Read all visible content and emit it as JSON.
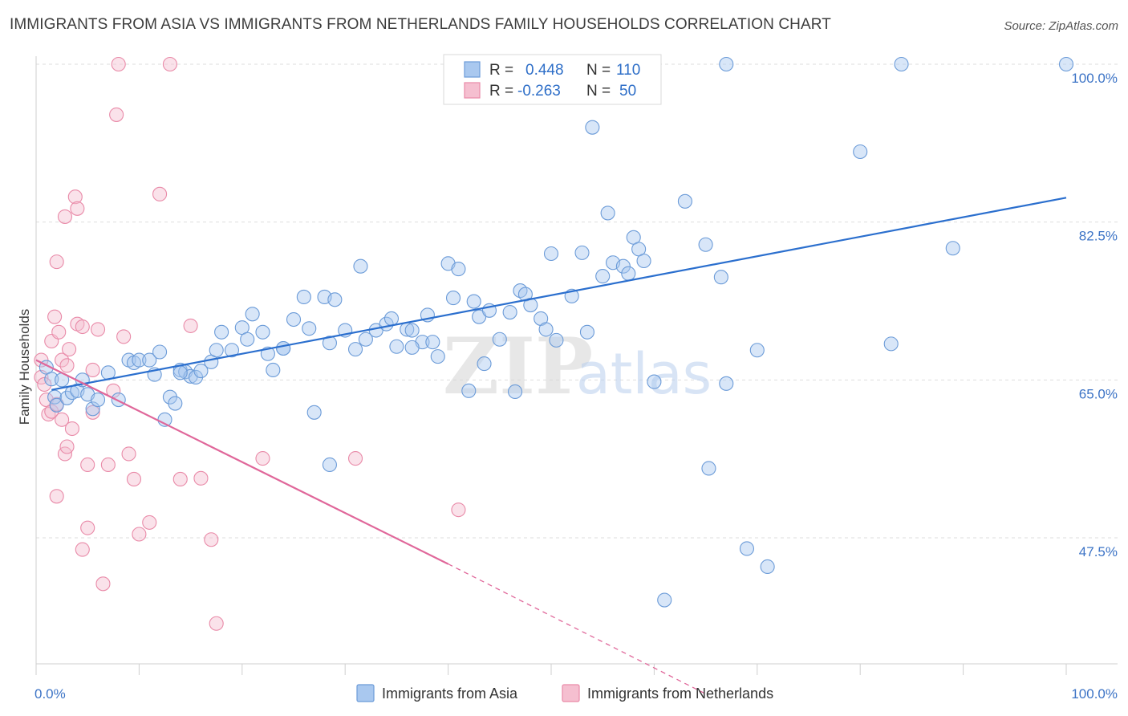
{
  "title": "IMMIGRANTS FROM ASIA VS IMMIGRANTS FROM NETHERLANDS FAMILY HOUSEHOLDS CORRELATION CHART",
  "source": "Source: ZipAtlas.com",
  "colors": {
    "asia_fill": "#a9c8ef",
    "asia_stroke": "#6b9bd8",
    "asia_line": "#2b6fce",
    "neth_fill": "#f5bfd0",
    "neth_stroke": "#e98aa8",
    "neth_line": "#e0679a",
    "axis_text": "#3d74c6",
    "grid": "#dedede"
  },
  "legend": {
    "asia": {
      "r_label": "R = ",
      "r_value": "0.448",
      "n_label": "N = ",
      "n_value": "110"
    },
    "neth": {
      "r_label": "R = ",
      "r_value": "-0.263",
      "n_label": "N = ",
      "n_value": "50"
    }
  },
  "watermark": {
    "zip": "ZIP",
    "atlas": "atlas"
  },
  "chart_data": {
    "type": "scatter",
    "xlabel": "",
    "ylabel": "Family Households",
    "xlim": [
      0,
      100
    ],
    "ylim": [
      30.2,
      101.5
    ],
    "x_tick_labels": [
      {
        "value": 0,
        "label": "0.0%"
      },
      {
        "value": 100,
        "label": "100.0%"
      }
    ],
    "y_tick_labels": [
      {
        "value": 100.0,
        "label": "100.0%"
      },
      {
        "value": 82.5,
        "label": "82.5%"
      },
      {
        "value": 65.0,
        "label": "65.0%"
      },
      {
        "value": 47.5,
        "label": "47.5%"
      }
    ],
    "grid": true,
    "legend_position": "top-center",
    "series": [
      {
        "name": "Immigrants from Asia",
        "trend": {
          "x": [
            1.5,
            100
          ],
          "y": [
            63.9,
            85.2
          ]
        },
        "points": [
          [
            1.0,
            66.4
          ],
          [
            1.5,
            65.1
          ],
          [
            1.8,
            63.1
          ],
          [
            2.0,
            62.2
          ],
          [
            2.5,
            65.0
          ],
          [
            3.0,
            63.0
          ],
          [
            3.5,
            63.6
          ],
          [
            4.0,
            63.8
          ],
          [
            4.5,
            65.0
          ],
          [
            5.0,
            63.4
          ],
          [
            5.5,
            61.8
          ],
          [
            6.0,
            62.8
          ],
          [
            7.0,
            65.8
          ],
          [
            8.0,
            62.8
          ],
          [
            9.0,
            67.2
          ],
          [
            9.5,
            66.9
          ],
          [
            10.0,
            67.2
          ],
          [
            11.0,
            67.2
          ],
          [
            11.5,
            65.6
          ],
          [
            12.0,
            68.1
          ],
          [
            12.5,
            60.6
          ],
          [
            13.0,
            63.1
          ],
          [
            13.5,
            62.4
          ],
          [
            14.0,
            66.1
          ],
          [
            14.5,
            65.9
          ],
          [
            15.0,
            65.4
          ],
          [
            15.5,
            65.3
          ],
          [
            16.0,
            66.0
          ],
          [
            17.0,
            67.0
          ],
          [
            17.5,
            68.3
          ],
          [
            18.0,
            70.3
          ],
          [
            19.0,
            68.3
          ],
          [
            20.0,
            70.8
          ],
          [
            20.5,
            69.5
          ],
          [
            21.0,
            72.3
          ],
          [
            22.0,
            70.3
          ],
          [
            22.5,
            67.9
          ],
          [
            23.0,
            66.1
          ],
          [
            24.0,
            68.5
          ],
          [
            25.0,
            71.7
          ],
          [
            26.0,
            74.2
          ],
          [
            26.5,
            70.7
          ],
          [
            27.0,
            61.4
          ],
          [
            28.0,
            74.2
          ],
          [
            28.5,
            69.1
          ],
          [
            29.0,
            73.9
          ],
          [
            30.0,
            70.5
          ],
          [
            31.0,
            68.4
          ],
          [
            31.5,
            77.6
          ],
          [
            32.0,
            69.5
          ],
          [
            33.0,
            70.5
          ],
          [
            34.0,
            71.2
          ],
          [
            34.5,
            71.8
          ],
          [
            35.0,
            68.7
          ],
          [
            36.0,
            70.6
          ],
          [
            36.5,
            70.5
          ],
          [
            37.5,
            69.2
          ],
          [
            38.0,
            72.2
          ],
          [
            38.5,
            69.2
          ],
          [
            39.0,
            67.6
          ],
          [
            40.0,
            77.9
          ],
          [
            40.5,
            74.1
          ],
          [
            41.0,
            77.3
          ],
          [
            42.0,
            63.8
          ],
          [
            42.5,
            73.7
          ],
          [
            43.0,
            72.0
          ],
          [
            43.5,
            66.8
          ],
          [
            44.0,
            72.7
          ],
          [
            45.0,
            69.5
          ],
          [
            46.0,
            72.5
          ],
          [
            46.5,
            63.7
          ],
          [
            47.0,
            74.9
          ],
          [
            47.5,
            74.5
          ],
          [
            48.0,
            73.3
          ],
          [
            49.0,
            71.8
          ],
          [
            49.5,
            70.6
          ],
          [
            50.0,
            79.0
          ],
          [
            50.5,
            69.4
          ],
          [
            52.0,
            74.3
          ],
          [
            53.0,
            79.1
          ],
          [
            53.5,
            70.3
          ],
          [
            54.0,
            93.0
          ],
          [
            55.0,
            76.5
          ],
          [
            55.5,
            83.5
          ],
          [
            56.0,
            78.0
          ],
          [
            57.0,
            77.6
          ],
          [
            57.5,
            76.8
          ],
          [
            58.0,
            80.8
          ],
          [
            58.5,
            79.5
          ],
          [
            59.0,
            78.2
          ],
          [
            60.0,
            64.8
          ],
          [
            61.0,
            40.6
          ],
          [
            63.0,
            84.8
          ],
          [
            65.0,
            80.0
          ],
          [
            65.3,
            55.2
          ],
          [
            66.5,
            76.4
          ],
          [
            67.0,
            64.6
          ],
          [
            69.0,
            46.3
          ],
          [
            70.0,
            68.3
          ],
          [
            71.0,
            44.3
          ],
          [
            84.0,
            100.0
          ],
          [
            67.0,
            100.0
          ],
          [
            80.0,
            90.3
          ],
          [
            83.0,
            69.0
          ],
          [
            89.0,
            79.6
          ],
          [
            100.0,
            100.0
          ],
          [
            28.5,
            55.6
          ],
          [
            36.5,
            68.6
          ],
          [
            24.0,
            68.5
          ],
          [
            14.0,
            65.8
          ]
        ]
      },
      {
        "name": "Immigrants from Netherlands",
        "trend": {
          "x": [
            0,
            40
          ],
          "y": [
            67.2,
            44.6
          ]
        },
        "trend_dashed": {
          "x": [
            40,
            65
          ],
          "y": [
            44.6,
            30.2
          ]
        },
        "points": [
          [
            0.5,
            67.2
          ],
          [
            0.5,
            65.3
          ],
          [
            0.8,
            64.5
          ],
          [
            1.0,
            62.8
          ],
          [
            1.2,
            61.2
          ],
          [
            1.5,
            69.3
          ],
          [
            1.5,
            61.5
          ],
          [
            1.8,
            72.0
          ],
          [
            2.0,
            78.1
          ],
          [
            2.0,
            62.3
          ],
          [
            2.0,
            52.1
          ],
          [
            2.2,
            70.3
          ],
          [
            2.5,
            67.2
          ],
          [
            2.5,
            60.6
          ],
          [
            2.8,
            83.1
          ],
          [
            2.8,
            56.8
          ],
          [
            3.0,
            66.6
          ],
          [
            3.0,
            57.6
          ],
          [
            3.2,
            68.4
          ],
          [
            3.5,
            59.6
          ],
          [
            3.8,
            85.3
          ],
          [
            4.0,
            84.0
          ],
          [
            4.0,
            71.2
          ],
          [
            4.5,
            70.9
          ],
          [
            4.5,
            46.2
          ],
          [
            5.0,
            55.6
          ],
          [
            5.0,
            48.6
          ],
          [
            5.5,
            61.4
          ],
          [
            5.5,
            66.1
          ],
          [
            6.0,
            70.6
          ],
          [
            6.5,
            42.4
          ],
          [
            7.0,
            55.6
          ],
          [
            7.5,
            63.8
          ],
          [
            7.8,
            94.4
          ],
          [
            8.0,
            100.0
          ],
          [
            8.5,
            69.8
          ],
          [
            9.0,
            56.8
          ],
          [
            9.5,
            54.0
          ],
          [
            10.0,
            47.9
          ],
          [
            11.0,
            49.2
          ],
          [
            12.0,
            85.6
          ],
          [
            13.0,
            100.0
          ],
          [
            14.0,
            54.0
          ],
          [
            15.0,
            71.0
          ],
          [
            16.0,
            54.1
          ],
          [
            17.0,
            47.3
          ],
          [
            17.5,
            38.0
          ],
          [
            22.0,
            56.3
          ],
          [
            31.0,
            56.3
          ],
          [
            41.0,
            50.6
          ]
        ]
      }
    ]
  }
}
